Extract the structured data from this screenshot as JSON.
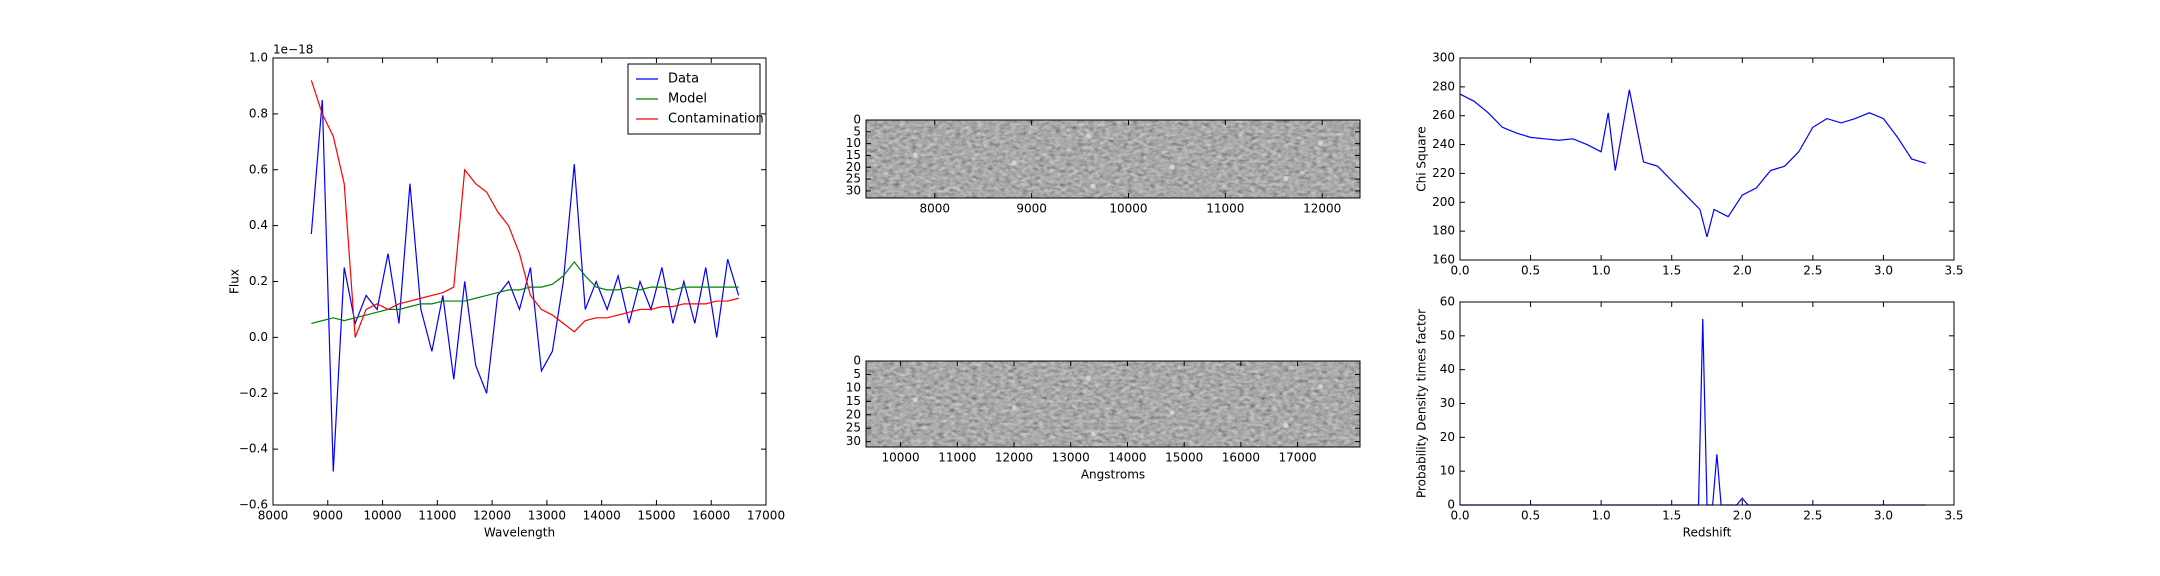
{
  "chart_data": [
    {
      "type": "line",
      "x_label": "Wavelength",
      "y_label": "Flux",
      "y_offset_label": "1e−18",
      "xlim": [
        8000,
        17000
      ],
      "ylim": [
        -0.6,
        1.0
      ],
      "xticks": [
        8000,
        9000,
        10000,
        11000,
        12000,
        13000,
        14000,
        15000,
        16000,
        17000
      ],
      "yticks": [
        {
          "value": -0.6,
          "label": "−0.6"
        },
        {
          "value": -0.4,
          "label": "−0.4"
        },
        {
          "value": -0.2,
          "label": "−0.2"
        },
        {
          "value": 0,
          "label": "0.0"
        },
        0.2,
        0.4,
        0.6,
        0.8,
        {
          "value": 1,
          "label": "1.0"
        }
      ],
      "legend": "upper right",
      "x": [
        8700,
        8900,
        9100,
        9300,
        9500,
        9700,
        9900,
        10100,
        10300,
        10500,
        10700,
        10900,
        11100,
        11300,
        11500,
        11700,
        11900,
        12100,
        12300,
        12500,
        12700,
        12900,
        13100,
        13300,
        13500,
        13700,
        13900,
        14100,
        14300,
        14500,
        14700,
        14900,
        15100,
        15300,
        15500,
        15700,
        15900,
        16100,
        16300,
        16500
      ],
      "series": [
        {
          "name": "Data",
          "color": "#0000ff",
          "values": [
            0.37,
            0.85,
            -0.48,
            0.25,
            0.05,
            0.15,
            0.1,
            0.3,
            0.05,
            0.55,
            0.1,
            -0.05,
            0.15,
            -0.15,
            0.2,
            -0.1,
            -0.2,
            0.15,
            0.2,
            0.1,
            0.25,
            -0.12,
            -0.05,
            0.2,
            0.62,
            0.1,
            0.2,
            0.1,
            0.22,
            0.05,
            0.2,
            0.1,
            0.25,
            0.05,
            0.2,
            0.05,
            0.25,
            0.0,
            0.28,
            0.15
          ]
        },
        {
          "name": "Model",
          "color": "#008000",
          "values": [
            0.05,
            0.06,
            0.07,
            0.06,
            0.07,
            0.08,
            0.09,
            0.1,
            0.1,
            0.11,
            0.12,
            0.12,
            0.13,
            0.13,
            0.13,
            0.14,
            0.15,
            0.16,
            0.17,
            0.17,
            0.18,
            0.18,
            0.19,
            0.22,
            0.27,
            0.22,
            0.18,
            0.17,
            0.17,
            0.18,
            0.17,
            0.18,
            0.18,
            0.17,
            0.18,
            0.18,
            0.18,
            0.18,
            0.18,
            0.18
          ]
        },
        {
          "name": "Contamination",
          "color": "#ff0000",
          "values": [
            0.92,
            0.8,
            0.72,
            0.55,
            0.0,
            0.1,
            0.12,
            0.1,
            0.12,
            0.13,
            0.14,
            0.15,
            0.16,
            0.18,
            0.6,
            0.55,
            0.52,
            0.45,
            0.4,
            0.3,
            0.15,
            0.1,
            0.08,
            0.05,
            0.02,
            0.06,
            0.07,
            0.07,
            0.08,
            0.09,
            0.1,
            0.1,
            0.11,
            0.11,
            0.12,
            0.12,
            0.12,
            0.13,
            0.13,
            0.14
          ]
        }
      ]
    },
    {
      "type": "image",
      "xlim": [
        7290,
        12390
      ],
      "ylim": [
        0,
        33
      ],
      "yinvert": true,
      "xticks": [
        8000,
        9000,
        10000,
        11000,
        12000
      ],
      "yticks": [
        0,
        5,
        10,
        15,
        20,
        25,
        30
      ]
    },
    {
      "type": "image",
      "x_label": "Angstroms",
      "xlim": [
        9390,
        18100
      ],
      "ylim": [
        0,
        32
      ],
      "yinvert": true,
      "xticks": [
        10000,
        11000,
        12000,
        13000,
        14000,
        15000,
        16000,
        17000
      ],
      "yticks": [
        0,
        5,
        10,
        15,
        20,
        25,
        30
      ]
    },
    {
      "type": "line",
      "y_label": "Chi Square",
      "xlim": [
        0,
        3.5
      ],
      "ylim": [
        160,
        300
      ],
      "xticks": [
        {
          "value": 0,
          "label": "0.0"
        },
        0.5,
        {
          "value": 1,
          "label": "1.0"
        },
        1.5,
        {
          "value": 2,
          "label": "2.0"
        },
        2.5,
        {
          "value": 3,
          "label": "3.0"
        },
        3.5
      ],
      "yticks": [
        160,
        180,
        200,
        220,
        240,
        260,
        280,
        300
      ],
      "x": [
        0,
        0.1,
        0.2,
        0.3,
        0.4,
        0.5,
        0.6,
        0.7,
        0.8,
        0.9,
        1.0,
        1.05,
        1.1,
        1.2,
        1.3,
        1.4,
        1.5,
        1.6,
        1.7,
        1.75,
        1.8,
        1.9,
        2.0,
        2.1,
        2.2,
        2.3,
        2.4,
        2.5,
        2.6,
        2.7,
        2.8,
        2.9,
        3.0,
        3.1,
        3.2,
        3.3
      ],
      "series": [
        {
          "name": "Chi Square",
          "color": "#0000ff",
          "values": [
            275,
            270,
            262,
            252,
            248,
            245,
            244,
            243,
            244,
            240,
            235,
            262,
            222,
            278,
            228,
            225,
            215,
            205,
            195,
            176,
            195,
            190,
            205,
            210,
            222,
            225,
            235,
            252,
            258,
            255,
            258,
            262,
            258,
            245,
            230,
            227
          ]
        }
      ]
    },
    {
      "type": "line",
      "x_label": "Redshift",
      "y_label": "Probability Density times factor",
      "xlim": [
        0,
        3.5
      ],
      "ylim": [
        0,
        60
      ],
      "xticks": [
        {
          "value": 0,
          "label": "0.0"
        },
        0.5,
        {
          "value": 1,
          "label": "1.0"
        },
        1.5,
        {
          "value": 2,
          "label": "2.0"
        },
        2.5,
        {
          "value": 3,
          "label": "3.0"
        },
        3.5
      ],
      "yticks": [
        0,
        10,
        20,
        30,
        40,
        50,
        60
      ],
      "x": [
        0,
        1.6,
        1.69,
        1.72,
        1.75,
        1.79,
        1.82,
        1.85,
        1.96,
        2.0,
        2.04,
        3.3
      ],
      "series": [
        {
          "name": "Probability Density times factor",
          "color": "#0000ff",
          "values": [
            0,
            0,
            0,
            55,
            0,
            0,
            15,
            0,
            0,
            2,
            0,
            0
          ]
        }
      ]
    }
  ]
}
